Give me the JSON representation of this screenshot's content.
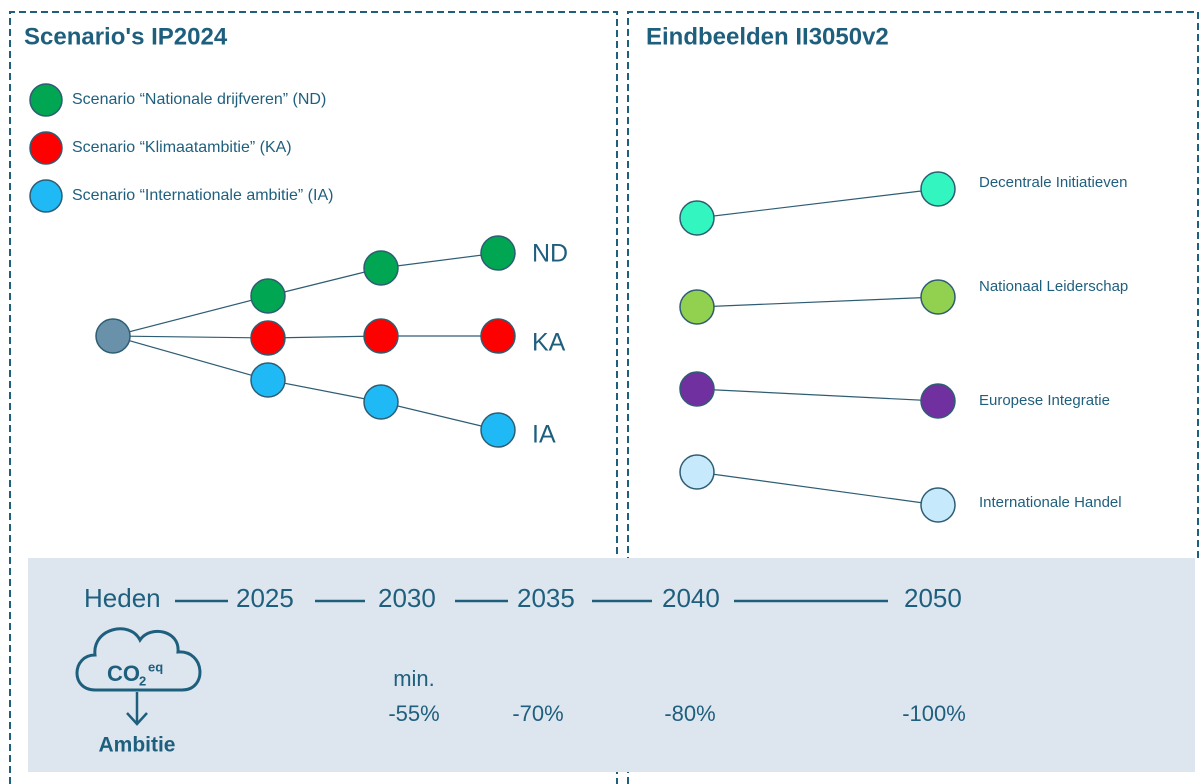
{
  "scenarios": {
    "title": "Scenario's IP2024",
    "legend": [
      {
        "label": "Scenario “Nationale drijfveren” (ND)",
        "color": "#00a651"
      },
      {
        "label": "Scenario “Klimaatambitie” (KA)",
        "color": "#ff0000"
      },
      {
        "label": "Scenario “Internationale ambitie” (IA)",
        "color": "#1fbaf5"
      }
    ],
    "root_color": "#6a91aa",
    "branches": [
      {
        "label": "ND",
        "color": "#00a651"
      },
      {
        "label": "KA",
        "color": "#ff0000"
      },
      {
        "label": "IA",
        "color": "#1fbaf5"
      }
    ]
  },
  "end_states": {
    "title": "Eindbeelden II3050v2",
    "items": [
      {
        "label": "Decentrale Initiatieven",
        "color": "#33f5c0"
      },
      {
        "label": "Nationaal Leiderschap",
        "color": "#92d050"
      },
      {
        "label": "Europese Integratie",
        "color": "#7030a0"
      },
      {
        "label": "Internationale Handel",
        "color": "#c6e9fb"
      }
    ]
  },
  "timeline": {
    "labels": [
      "Heden",
      "2025",
      "2030",
      "2035",
      "2040",
      "2050"
    ],
    "icon": {
      "text": "CO",
      "subscript": "2",
      "superscript": "eq",
      "caption": "Ambitie"
    },
    "targets": [
      {
        "note": "min.",
        "label": "-55%"
      },
      {
        "label": "-70%"
      },
      {
        "label": "-80%"
      },
      {
        "label": "-100%"
      }
    ]
  }
}
